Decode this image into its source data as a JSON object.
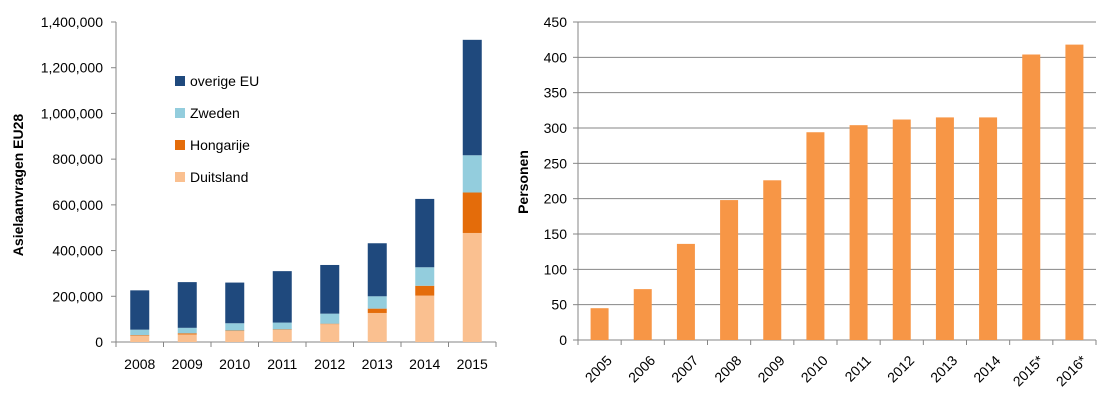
{
  "chart_data": [
    {
      "type": "bar",
      "stacked": true,
      "title": "",
      "xlabel": "",
      "ylabel": "Asielaanvragen EU28",
      "ylim": [
        0,
        1400000
      ],
      "yticks": [
        "0",
        "200,000",
        "400,000",
        "600,000",
        "800,000",
        "1,000,000",
        "1,200,000",
        "1,400,000"
      ],
      "grid": false,
      "legend_position": "upper-left (inside plot)",
      "categories": [
        "2008",
        "2009",
        "2010",
        "2011",
        "2012",
        "2013",
        "2014",
        "2015"
      ],
      "series": [
        {
          "name": "Duitsland",
          "color": "#fac090",
          "values": [
            27000,
            33000,
            48000,
            53000,
            78000,
            127000,
            203000,
            477000
          ]
        },
        {
          "name": "Hongarije",
          "color": "#e46c0a",
          "values": [
            3000,
            5000,
            2000,
            2000,
            2000,
            19000,
            43000,
            177000
          ]
        },
        {
          "name": "Zweden",
          "color": "#93cddd",
          "values": [
            24000,
            24000,
            32000,
            30000,
            44000,
            54000,
            81000,
            163000
          ]
        },
        {
          "name": "overige EU",
          "color": "#1f497d",
          "values": [
            172000,
            200000,
            178000,
            225000,
            213000,
            232000,
            299000,
            505000
          ]
        }
      ],
      "legend_order": [
        "overige EU",
        "Zweden",
        "Hongarije",
        "Duitsland"
      ]
    },
    {
      "type": "bar",
      "title": "",
      "xlabel": "",
      "ylabel": "Personen",
      "ylim": [
        0,
        450
      ],
      "yticks": [
        "0",
        "50",
        "100",
        "150",
        "200",
        "250",
        "300",
        "350",
        "400",
        "450"
      ],
      "grid": true,
      "color": "#f79646",
      "categories": [
        "2005",
        "2006",
        "2007",
        "2008",
        "2009",
        "2010",
        "2011",
        "2012",
        "2013",
        "2014",
        "2015*",
        "2016*"
      ],
      "values": [
        45,
        72,
        136,
        198,
        226,
        294,
        304,
        312,
        315,
        315,
        404,
        418
      ]
    }
  ]
}
